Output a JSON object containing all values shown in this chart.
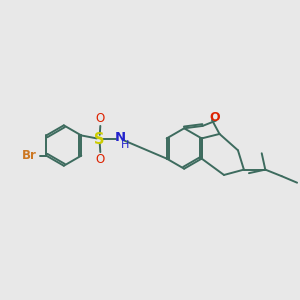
{
  "bg_color": "#e8e8e8",
  "bond_color": "#3d6b5e",
  "atom_colors": {
    "Br": "#cc7722",
    "S": "#cccc00",
    "O": "#dd2200",
    "N": "#2222cc",
    "H": "#2222cc"
  },
  "lw": 1.4,
  "fs": 8.5
}
